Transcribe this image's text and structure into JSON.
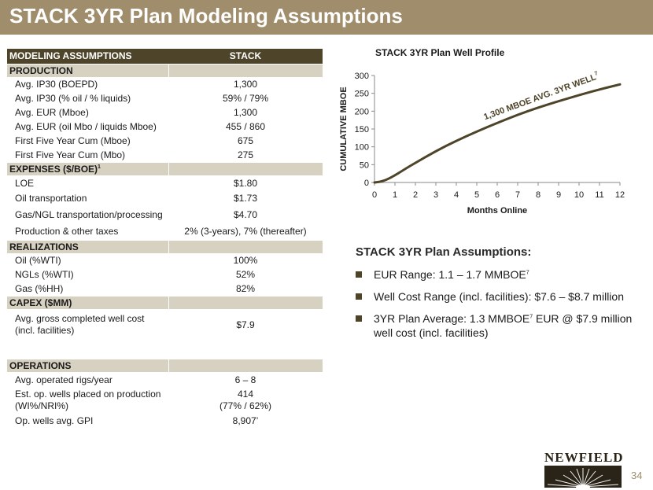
{
  "slide": {
    "title": "STACK 3YR Plan Modeling Assumptions",
    "page_number": "34"
  },
  "table": {
    "header": [
      "MODELING ASSUMPTIONS",
      "STACK"
    ],
    "production": {
      "label": "PRODUCTION",
      "rows": [
        {
          "label": "Avg. IP30 (BOEPD)",
          "value": "1,300"
        },
        {
          "label": "Avg. IP30 (% oil / % liquids)",
          "value": "59% / 79%"
        },
        {
          "label": "Avg. EUR (Mboe)",
          "value": "1,300"
        },
        {
          "label": "Avg. EUR (oil Mbo / liquids Mboe)",
          "value": "455 / 860"
        },
        {
          "label": "First Five Year Cum (Mboe)",
          "value": "675"
        },
        {
          "label": "First Five Year Cum (Mbo)",
          "value": "275"
        }
      ]
    },
    "expenses": {
      "label": "EXPENSES ($/BOE)",
      "footnote": "1",
      "rows": [
        {
          "label": "LOE",
          "value": "$1.80"
        },
        {
          "label": "Oil transportation",
          "value": "$1.73"
        },
        {
          "label": "Gas/NGL transportation/processing",
          "value": "$4.70"
        },
        {
          "label": "Production & other taxes",
          "value": "2% (3-years), 7% (thereafter)"
        }
      ]
    },
    "realizations": {
      "label": "REALIZATIONS",
      "rows": [
        {
          "label": "Oil (%WTI)",
          "value": "100%"
        },
        {
          "label": "NGLs (%WTI)",
          "value": "52%"
        },
        {
          "label": "Gas (%HH)",
          "value": "82%"
        }
      ]
    },
    "capex": {
      "label": "CAPEX ($MM)",
      "rows": [
        {
          "label": "Avg. gross completed well cost (incl. facilities)",
          "value": "$7.9"
        }
      ]
    },
    "operations": {
      "label": "OPERATIONS",
      "rows": [
        {
          "label": "Avg. operated rigs/year",
          "value": "6 – 8"
        },
        {
          "label": "Est. op. wells placed on production (WI%/NRI%)",
          "value": "414",
          "value2": "(77% / 62%)"
        },
        {
          "label": "Op. wells avg. GPI",
          "value": "8,907’"
        }
      ]
    }
  },
  "chart_data": {
    "type": "line",
    "title": "STACK 3YR Plan Well Profile",
    "xlabel": "Months Online",
    "ylabel": "CUMULATIVE MBOE",
    "xlim": [
      0,
      12
    ],
    "ylim": [
      0,
      300
    ],
    "x_ticks": [
      "0",
      "1",
      "2",
      "3",
      "4",
      "5",
      "6",
      "7",
      "8",
      "9",
      "10",
      "11",
      "12"
    ],
    "y_ticks": [
      "0",
      "50",
      "100",
      "150",
      "200",
      "250",
      "300"
    ],
    "grid": false,
    "series": [
      {
        "name": "1,300 MBOE AVG. 3YR WELL",
        "name_footnote": "7",
        "color": "#4d4429",
        "x": [
          0,
          0.3,
          0.6,
          1,
          1.5,
          2,
          3,
          4,
          5,
          6,
          7,
          8,
          9,
          10,
          11,
          12
        ],
        "y": [
          0,
          2,
          8,
          20,
          38,
          55,
          88,
          117,
          143,
          167,
          190,
          210,
          228,
          245,
          261,
          275
        ]
      }
    ]
  },
  "plan": {
    "title": "STACK 3YR Plan Assumptions:",
    "bullets": [
      {
        "pre": "EUR Range: 1.1 – 1.7 MMBOE",
        "sup": "7",
        "post": ""
      },
      {
        "pre": "Well Cost Range (incl. facilities): $7.6 – $8.7 million",
        "sup": "",
        "post": ""
      },
      {
        "pre": "3YR Plan Average: 1.3 MMBOE",
        "sup": "7",
        "post": " EUR @ $7.9 million well cost (incl. facilities)"
      }
    ]
  },
  "logo": {
    "text": "NEWFIELD"
  }
}
